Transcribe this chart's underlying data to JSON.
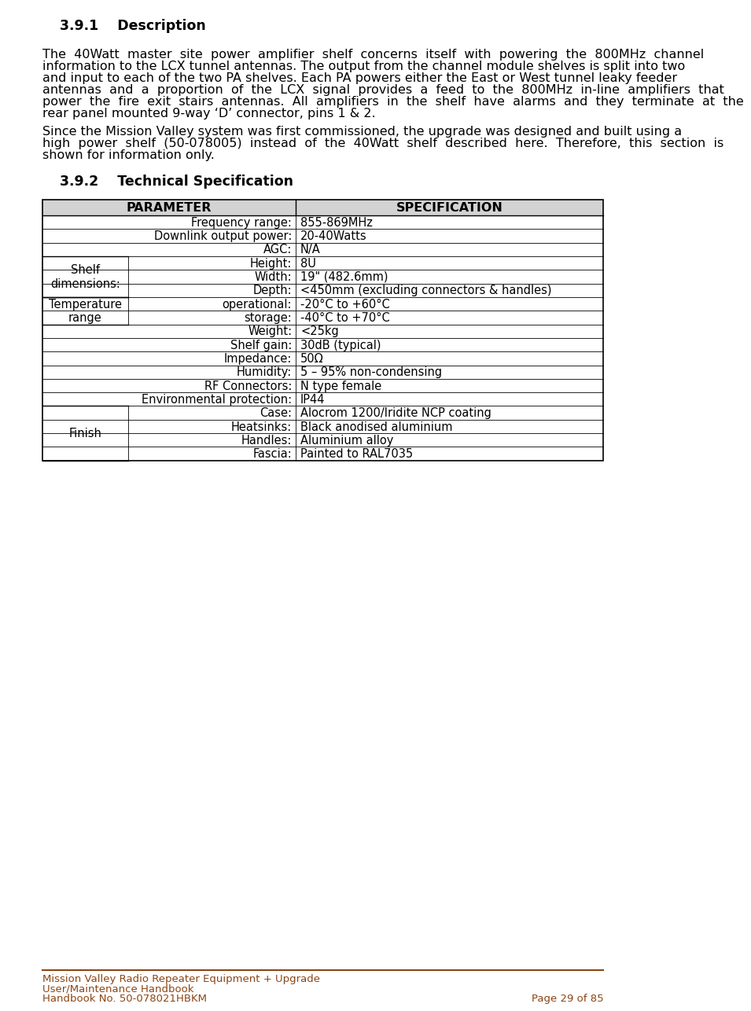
{
  "title_391": "3.9.1    Description",
  "title_392": "3.9.2    Technical Specification",
  "para1_lines": [
    "The  40Watt  master  site  power  amplifier  shelf  concerns  itself  with  powering  the  800MHz  channel",
    "information to the LCX tunnel antennas. The output from the channel module shelves is split into two",
    "and input to each of the two PA shelves. Each PA powers either the East or West tunnel leaky feeder",
    "antennas  and  a  proportion  of  the  LCX  signal  provides  a  feed  to  the  800MHz  in-line  amplifiers  that",
    "power  the  fire  exit  stairs  antennas.  All  amplifiers  in  the  shelf  have  alarms  and  they  terminate  at  the",
    "rear panel mounted 9-way ‘D’ connector, pins 1 & 2."
  ],
  "para2_lines": [
    "Since the Mission Valley system was first commissioned, the upgrade was designed and built using a",
    "high  power  shelf  (50-078005)  instead  of  the  40Watt  shelf  described  here.  Therefore,  this  section  is",
    "shown for information only."
  ],
  "footer_line1": "Mission Valley Radio Repeater Equipment + Upgrade",
  "footer_line2": "User/Maintenance Handbook",
  "footer_line3": "Handbook No. 50-078021HBKM",
  "footer_page": "Page 29 of 85",
  "footer_color": "#8B4513",
  "bg_color": "#ffffff",
  "header_bg": "#d3d3d3",
  "grid_color": "#000000",
  "text_color": "#000000"
}
